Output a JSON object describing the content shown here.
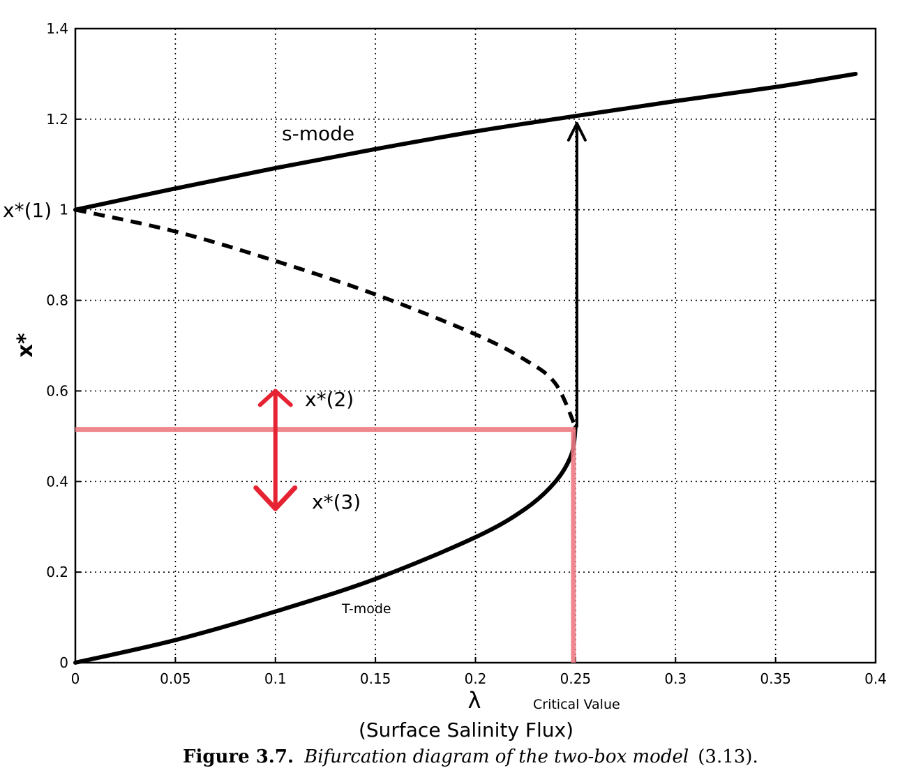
{
  "chart_data": {
    "type": "line",
    "xlabel": "λ",
    "xlabel_sub": "(Surface Salinity Flux)",
    "ylabel": "x*",
    "xlim": [
      0,
      0.4
    ],
    "ylim": [
      0,
      1.4
    ],
    "xticks": [
      "0",
      "0.05",
      "0.1",
      "0.15",
      "0.2",
      "0.25",
      "0.3",
      "0.35",
      "0.4"
    ],
    "xtick_values": [
      0,
      0.05,
      0.1,
      0.15,
      0.2,
      0.25,
      0.3,
      0.35,
      0.4
    ],
    "yticks": [
      "0",
      "0.2",
      "0.4",
      "0.6",
      "0.8",
      "1",
      "1.2",
      "1.4"
    ],
    "ytick_values": [
      0,
      0.2,
      0.4,
      0.6,
      0.8,
      1.0,
      1.2,
      1.4
    ],
    "grid": true,
    "series": [
      {
        "name": "s-mode",
        "style": "solid",
        "x": [
          0,
          0.05,
          0.1,
          0.15,
          0.2,
          0.25,
          0.3,
          0.35,
          0.39
        ],
        "y": [
          1.0,
          1.047,
          1.092,
          1.134,
          1.173,
          1.207,
          1.24,
          1.271,
          1.3
        ]
      },
      {
        "name": "",
        "style": "dashed",
        "x": [
          0,
          0.05,
          0.1,
          0.15,
          0.2,
          0.225,
          0.24,
          0.25
        ],
        "y": [
          1.0,
          0.952,
          0.887,
          0.813,
          0.725,
          0.668,
          0.616,
          0.52
        ]
      },
      {
        "name": "T-mode",
        "style": "solid",
        "x": [
          0,
          0.05,
          0.1,
          0.15,
          0.2,
          0.225,
          0.24,
          0.248,
          0.25
        ],
        "y": [
          0,
          0.05,
          0.113,
          0.185,
          0.277,
          0.34,
          0.4,
          0.46,
          0.52
        ]
      }
    ],
    "annotations": {
      "s_mode": "s-mode",
      "t_mode": "T-mode",
      "x1": "x*(1)",
      "x2": "x*(2)",
      "x3": "x*(3)",
      "critical": "Critical Value"
    },
    "critical_value": {
      "x": 0.25,
      "y": 0.515
    },
    "jump_arrow": {
      "x": 0.25,
      "y_from": 0.52,
      "y_to": 1.2
    },
    "red_arrow": {
      "x": 0.1,
      "y_up": 0.6,
      "y_down": 0.34
    },
    "colors": {
      "curve": "#000000",
      "critical_line": "#ee7b82",
      "red_arrow": "#e52333"
    }
  },
  "caption": {
    "label": "Figure 3.7.",
    "text": "Bifurcation diagram of the two-box model",
    "ref": "(3.13)."
  }
}
